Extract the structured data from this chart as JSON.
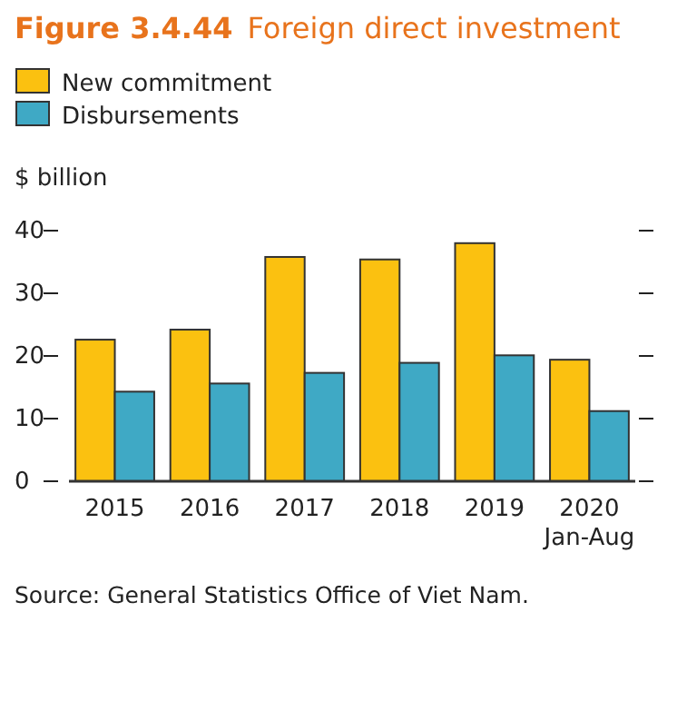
{
  "chart_data": {
    "type": "bar",
    "title": "Figure 3.4.44  Foreign direct investment",
    "ylabel": "$ billion",
    "categories": [
      "2015",
      "2016",
      "2017",
      "2018",
      "2019",
      "2020\nJan-Aug"
    ],
    "series": [
      {
        "name": "New commitment",
        "color": "#fbc110",
        "values": [
          22.6,
          24.2,
          35.8,
          35.4,
          38.0,
          19.4
        ]
      },
      {
        "name": "Disbursements",
        "color": "#3fa9c5",
        "values": [
          14.3,
          15.6,
          17.3,
          18.9,
          20.1,
          11.2
        ]
      }
    ],
    "ylim": [
      0,
      40
    ],
    "yticks": [
      0,
      10,
      20,
      30,
      40
    ],
    "legend": "top left",
    "grid": false,
    "annotations": [
      "Source: General Statistics Office of Viet Nam."
    ]
  }
}
